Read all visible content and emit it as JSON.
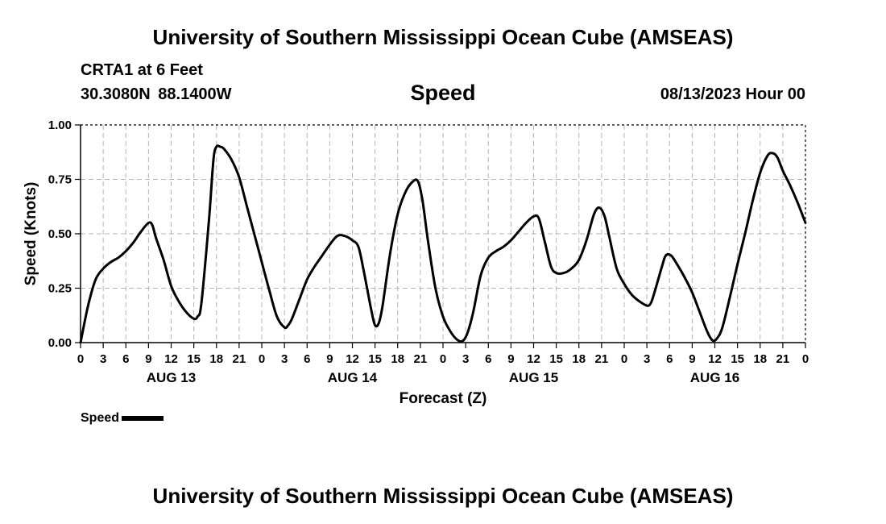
{
  "header": {
    "title": "University of Southern Mississippi Ocean Cube (AMSEAS)",
    "station": "CRTA1 at 6 Feet",
    "coords": "30.3080N  88.1400W",
    "chart_title": "Speed",
    "datetime": "08/13/2023 Hour 00"
  },
  "footer": {
    "title": "University of Southern Mississippi Ocean Cube (AMSEAS)"
  },
  "legend": {
    "label": "Speed",
    "color": "#000000"
  },
  "chart_data": {
    "type": "line",
    "title": "Speed",
    "xlabel": "Forecast (Z)",
    "ylabel": "Speed (Knots)",
    "ylim": [
      0,
      1
    ],
    "xlim": [
      0,
      96
    ],
    "grid": true,
    "y_ticks": [
      {
        "v": 0,
        "label": "0.00"
      },
      {
        "v": 0.25,
        "label": "0.25"
      },
      {
        "v": 0.5,
        "label": "0.50"
      },
      {
        "v": 0.75,
        "label": "0.75"
      },
      {
        "v": 1,
        "label": "1.00"
      }
    ],
    "x_ticks": [
      {
        "h": 0,
        "label": "0"
      },
      {
        "h": 3,
        "label": "3"
      },
      {
        "h": 6,
        "label": "6"
      },
      {
        "h": 9,
        "label": "9"
      },
      {
        "h": 12,
        "label": "12"
      },
      {
        "h": 15,
        "label": "15"
      },
      {
        "h": 18,
        "label": "18"
      },
      {
        "h": 21,
        "label": "21"
      },
      {
        "h": 24,
        "label": "0"
      },
      {
        "h": 27,
        "label": "3"
      },
      {
        "h": 30,
        "label": "6"
      },
      {
        "h": 33,
        "label": "9"
      },
      {
        "h": 36,
        "label": "12"
      },
      {
        "h": 39,
        "label": "15"
      },
      {
        "h": 42,
        "label": "18"
      },
      {
        "h": 45,
        "label": "21"
      },
      {
        "h": 48,
        "label": "0"
      },
      {
        "h": 51,
        "label": "3"
      },
      {
        "h": 54,
        "label": "6"
      },
      {
        "h": 57,
        "label": "9"
      },
      {
        "h": 60,
        "label": "12"
      },
      {
        "h": 63,
        "label": "15"
      },
      {
        "h": 66,
        "label": "18"
      },
      {
        "h": 69,
        "label": "21"
      },
      {
        "h": 72,
        "label": "0"
      },
      {
        "h": 75,
        "label": "3"
      },
      {
        "h": 78,
        "label": "6"
      },
      {
        "h": 81,
        "label": "9"
      },
      {
        "h": 84,
        "label": "12"
      },
      {
        "h": 87,
        "label": "15"
      },
      {
        "h": 90,
        "label": "18"
      },
      {
        "h": 93,
        "label": "21"
      },
      {
        "h": 96,
        "label": "0"
      }
    ],
    "day_labels": [
      {
        "h": 12,
        "label": "AUG 13"
      },
      {
        "h": 36,
        "label": "AUG 14"
      },
      {
        "h": 60,
        "label": "AUG 15"
      },
      {
        "h": 84,
        "label": "AUG 16"
      }
    ],
    "series": [
      {
        "name": "Speed",
        "color": "#000000",
        "points": [
          [
            0,
            0.0
          ],
          [
            1,
            0.17
          ],
          [
            2,
            0.29
          ],
          [
            3,
            0.34
          ],
          [
            4,
            0.37
          ],
          [
            5,
            0.39
          ],
          [
            6,
            0.42
          ],
          [
            7,
            0.46
          ],
          [
            8,
            0.51
          ],
          [
            9,
            0.55
          ],
          [
            9.5,
            0.54
          ],
          [
            10,
            0.48
          ],
          [
            11,
            0.38
          ],
          [
            12,
            0.26
          ],
          [
            13,
            0.19
          ],
          [
            14,
            0.14
          ],
          [
            15,
            0.11
          ],
          [
            15.5,
            0.12
          ],
          [
            16,
            0.18
          ],
          [
            17,
            0.56
          ],
          [
            17.6,
            0.84
          ],
          [
            18,
            0.9
          ],
          [
            18.5,
            0.9
          ],
          [
            19,
            0.89
          ],
          [
            20,
            0.84
          ],
          [
            21,
            0.76
          ],
          [
            22,
            0.63
          ],
          [
            23,
            0.5
          ],
          [
            24,
            0.37
          ],
          [
            25,
            0.24
          ],
          [
            26,
            0.12
          ],
          [
            27,
            0.07
          ],
          [
            27.5,
            0.08
          ],
          [
            28,
            0.11
          ],
          [
            29,
            0.2
          ],
          [
            30,
            0.29
          ],
          [
            31,
            0.35
          ],
          [
            32,
            0.4
          ],
          [
            33,
            0.45
          ],
          [
            34,
            0.49
          ],
          [
            35,
            0.49
          ],
          [
            36,
            0.47
          ],
          [
            36.8,
            0.44
          ],
          [
            37.5,
            0.33
          ],
          [
            38.5,
            0.15
          ],
          [
            39,
            0.08
          ],
          [
            39.5,
            0.09
          ],
          [
            40,
            0.17
          ],
          [
            41,
            0.41
          ],
          [
            42,
            0.59
          ],
          [
            43,
            0.69
          ],
          [
            44,
            0.74
          ],
          [
            44.7,
            0.74
          ],
          [
            45.3,
            0.65
          ],
          [
            46,
            0.47
          ],
          [
            47,
            0.25
          ],
          [
            48,
            0.12
          ],
          [
            49,
            0.05
          ],
          [
            50,
            0.01
          ],
          [
            50.7,
            0.01
          ],
          [
            51.3,
            0.05
          ],
          [
            52,
            0.14
          ],
          [
            53,
            0.31
          ],
          [
            54,
            0.39
          ],
          [
            55,
            0.42
          ],
          [
            56,
            0.44
          ],
          [
            57,
            0.47
          ],
          [
            58,
            0.51
          ],
          [
            59,
            0.55
          ],
          [
            60,
            0.58
          ],
          [
            60.7,
            0.57
          ],
          [
            61.5,
            0.46
          ],
          [
            62.3,
            0.35
          ],
          [
            63,
            0.32
          ],
          [
            64,
            0.32
          ],
          [
            65,
            0.34
          ],
          [
            66,
            0.38
          ],
          [
            67,
            0.47
          ],
          [
            68,
            0.59
          ],
          [
            68.7,
            0.62
          ],
          [
            69.4,
            0.58
          ],
          [
            70,
            0.49
          ],
          [
            71,
            0.34
          ],
          [
            72,
            0.27
          ],
          [
            73,
            0.22
          ],
          [
            74,
            0.19
          ],
          [
            75,
            0.17
          ],
          [
            75.5,
            0.18
          ],
          [
            76,
            0.23
          ],
          [
            77,
            0.35
          ],
          [
            77.5,
            0.4
          ],
          [
            78.2,
            0.4
          ],
          [
            79,
            0.36
          ],
          [
            80,
            0.3
          ],
          [
            81,
            0.23
          ],
          [
            82,
            0.14
          ],
          [
            83,
            0.05
          ],
          [
            83.7,
            0.01
          ],
          [
            84.3,
            0.02
          ],
          [
            85,
            0.07
          ],
          [
            86,
            0.21
          ],
          [
            87,
            0.36
          ],
          [
            88,
            0.5
          ],
          [
            89,
            0.65
          ],
          [
            90,
            0.78
          ],
          [
            91,
            0.86
          ],
          [
            91.7,
            0.87
          ],
          [
            92.3,
            0.85
          ],
          [
            93,
            0.79
          ],
          [
            94,
            0.72
          ],
          [
            95,
            0.64
          ],
          [
            96,
            0.55
          ]
        ]
      }
    ]
  }
}
